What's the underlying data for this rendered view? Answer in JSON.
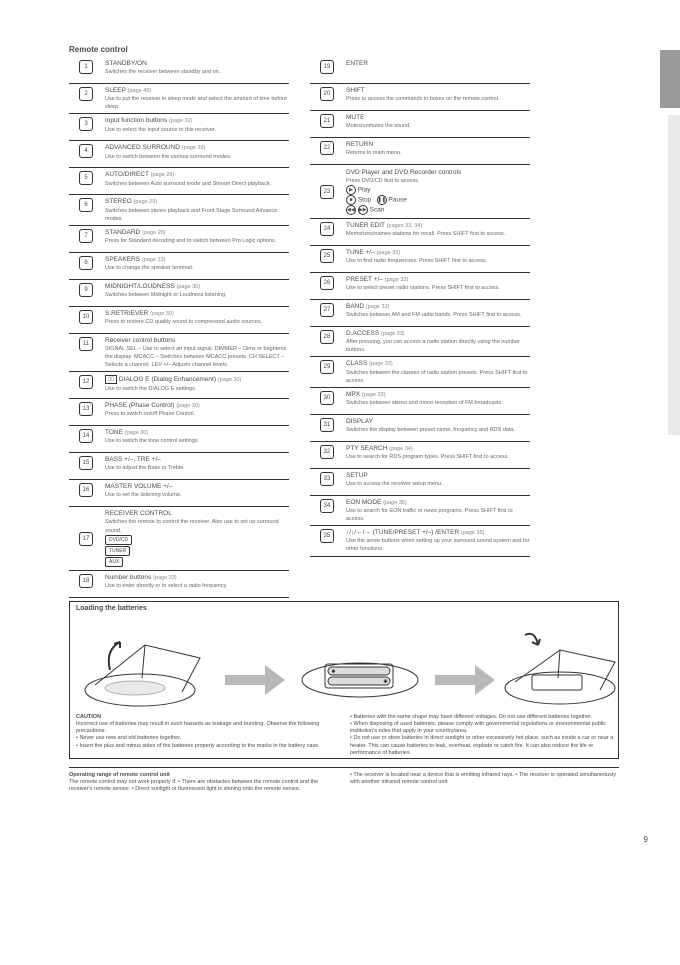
{
  "title": "Remote control",
  "side_tabs": {
    "tab1": "",
    "tab2": ""
  },
  "left": [
    {
      "num": "1",
      "main": "STANDBY/ON",
      "sub": "Switches the receiver between standby and on.",
      "ref": ""
    },
    {
      "num": "2",
      "main": "SLEEP",
      "sub": "Use to put the receiver in sleep mode and select the amount of time before sleep.",
      "ref": "(page 49)"
    },
    {
      "num": "3",
      "main": "Input function buttons",
      "sub": "Use to select the input source to this receiver.",
      "ref": "(page 32)"
    },
    {
      "num": "4",
      "main": "ADVANCED SURROUND",
      "sub": "Use to switch between the various surround modes.",
      "ref": "(page 28)"
    },
    {
      "num": "5",
      "main": "AUTO/DIRECT",
      "sub": "Switches between Auto surround mode and Stream Direct playback.",
      "ref": "(page 29)"
    },
    {
      "num": "6",
      "main": "STEREO",
      "sub": "Switches between stereo playback and Front Stage Surround Advance modes.",
      "ref": "(page 29)"
    },
    {
      "num": "7",
      "main": "STANDARD",
      "sub": "Press for Standard decoding and to switch between Pro Logic options.",
      "ref": "(page 28)"
    },
    {
      "num": "8",
      "main": "SPEAKERS",
      "sub": "Use to change the speaker terminal.",
      "ref": "(page 13)"
    },
    {
      "num": "9",
      "main": "MIDNIGHT/LOUDNESS",
      "sub": "Switches between Midnight or Loudness listening.",
      "ref": "(page 30)"
    },
    {
      "num": "10",
      "main": "S.RETRIEVER",
      "sub": "Press to restore CD quality sound to compressed audio sources.",
      "ref": "(page 30)"
    },
    {
      "num": "11",
      "main": "Receiver control buttons",
      "sub": "SIGNAL SEL – Use to select an input signal. DIMMER – Dims or brightens the display. MCACC – Switches between MCACC presets. CH SELECT – Selects a channel. LEV +/– Adjusts channel levels.",
      "ref": ""
    },
    {
      "num": "12",
      "main": "DIALOG E (Dialog Enhancement)",
      "sub": "Use to switch the DIALOG E settings.",
      "ref": "(page 30)",
      "icon": "dd"
    },
    {
      "num": "13",
      "main": "PHASE (Phase Control)",
      "sub": "Press to switch on/off Phase Control.",
      "ref": "(page 30)"
    },
    {
      "num": "14",
      "main": "TONE",
      "sub": "Use to switch the tone control settings.",
      "ref": "(page 30)"
    },
    {
      "num": "15",
      "main": "BASS +/–, TRE +/–",
      "sub": "Use to adjust the Bass or Treble.",
      "ref": ""
    },
    {
      "num": "16",
      "main": "MASTER VOLUME +/–",
      "sub": "Use to set the listening volume.",
      "ref": ""
    },
    {
      "num": "17",
      "main": "RECEIVER CONTROL",
      "sub": "Switches the remote to control the receiver. Also use to set up surround sound.",
      "ref": "",
      "tall": true,
      "pills": [
        "DVD/CD",
        "TUNER",
        "AUX"
      ]
    },
    {
      "num": "18",
      "main": "Number buttons",
      "sub": "Use to enter directly or to select a radio frequency.",
      "ref": "(page 33)"
    }
  ],
  "right": [
    {
      "num": "19",
      "main": "ENTER",
      "sub": "",
      "ref": ""
    },
    {
      "num": "20",
      "main": "SHIFT",
      "sub": "Press to access the commands in boxes on the remote control.",
      "ref": ""
    },
    {
      "num": "21",
      "main": "MUTE",
      "sub": "Mutes/unmutes the sound.",
      "ref": ""
    },
    {
      "num": "22",
      "main": "RETURN",
      "sub": "Returns to main menu.",
      "ref": ""
    },
    {
      "num": "23",
      "main": "DVD Player and DVD Recorder controls",
      "sub": "Press DVD/CD first to access.",
      "ref": "",
      "tall": true,
      "mediaIcons": true
    },
    {
      "num": "24",
      "main": "TUNER EDIT",
      "sub": "Memorizes/names stations for recall. Press SHIFT first to access.",
      "ref": "(pages 33, 34)"
    },
    {
      "num": "25",
      "main": "TUNE +/–",
      "sub": "Use to find radio frequencies. Press SHIFT first to access.",
      "ref": "(page 33)"
    },
    {
      "num": "26",
      "main": "PRESET +/–",
      "sub": "Use to select preset radio stations. Press SHIFT first to access.",
      "ref": "(page 33)"
    },
    {
      "num": "27",
      "main": "BAND",
      "sub": "Switches between AM and FM radio bands. Press SHIFT first to access.",
      "ref": "(page 33)"
    },
    {
      "num": "28",
      "main": "D.ACCESS",
      "sub": "After pressing, you can access a radio station directly using the number buttons.",
      "ref": "(page 33)"
    },
    {
      "num": "29",
      "main": "CLASS",
      "sub": "Switches between the classes of radio station presets. Press SHIFT first to access.",
      "ref": "(page 33)"
    },
    {
      "num": "30",
      "main": "MPX",
      "sub": "Switches between stereo and mono reception of FM broadcasts.",
      "ref": "(page 33)"
    },
    {
      "num": "31",
      "main": "DISPLAY",
      "sub": "Switches the display between preset name, frequency and RDS data.",
      "ref": ""
    },
    {
      "num": "32",
      "main": "PTY SEARCH",
      "sub": "Use to search for RDS program types. Press SHIFT first to access.",
      "ref": "(page 34)"
    },
    {
      "num": "33",
      "main": "SETUP",
      "sub": "Use to access the receiver setup menu.",
      "ref": ""
    },
    {
      "num": "34",
      "main": "EON MODE",
      "sub": "Use to search for EON traffic or news programs. Press SHIFT first to access.",
      "ref": "(page 35)"
    },
    {
      "num": "35",
      "main": "↑/↓/←/→ (TUNE/PRESET +/–) /ENTER",
      "sub": "Use the arrow buttons when setting up your surround sound system and for other functions.",
      "ref": "(page 35)"
    }
  ],
  "battery": {
    "title": "Loading the batteries",
    "cautionTitle": "CAUTION",
    "bullets": [
      "Incorrect use of batteries may result in such hazards as leakage and bursting. Observe the following precautions:",
      "• Never use new and old batteries together.",
      "• Insert the plus and minus sides of the batteries properly according to the marks in the battery case.",
      "• Batteries with the same shape may have different voltages. Do not use different batteries together.",
      "• When disposing of used batteries, please comply with governmental regulations or environmental public institution's rules that apply in your country/area.",
      "• Do not use or store batteries in direct sunlight or other excessively hot place, such as inside a car or near a heater. This can cause batteries to leak, overheat, explode or catch fire. It can also reduce the life or performance of batteries."
    ]
  },
  "footer": {
    "title": "Operating range of remote control unit",
    "col1": "The remote control may not work properly if:\n• There are obstacles between the remote control and the receiver's remote sensor.\n• Direct sunlight or fluorescent light is shining onto the remote sensor.",
    "col2": "• The receiver is located near a device that is emitting infrared rays.\n• The receiver is operated simultaneously with another infrared remote control unit."
  },
  "pageNum": "9",
  "colors": {
    "tabDark": "#9a9a9a",
    "tabLight": "#e8e8e8",
    "arrow": "#b8b8b8"
  }
}
